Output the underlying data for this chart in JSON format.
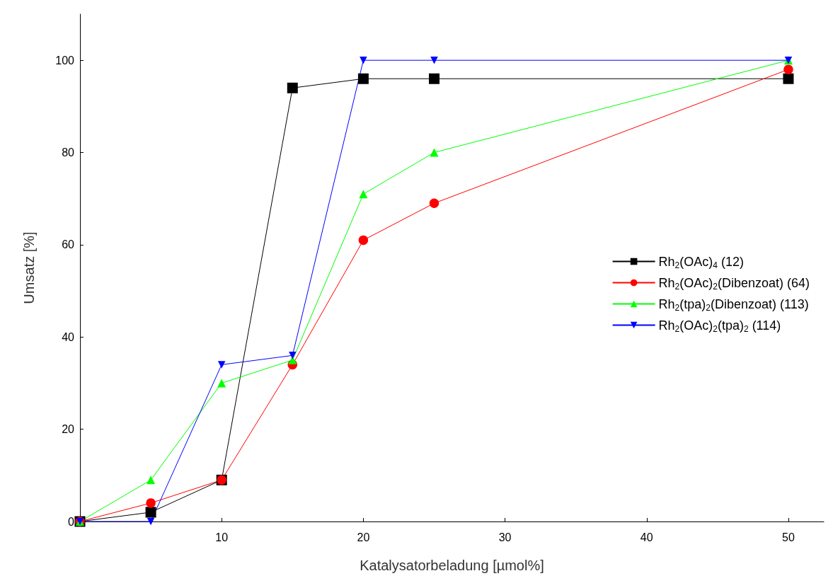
{
  "chart_data": {
    "type": "line",
    "xlabel": "Katalysatorbeladung [µmol%]",
    "ylabel": "Umsatz [%]",
    "x": [
      0,
      5,
      10,
      15,
      20,
      25,
      50
    ],
    "xlim": [
      0,
      52.5
    ],
    "xticks": [
      {
        "value": 0,
        "label": null
      },
      10,
      20,
      30,
      40,
      50
    ],
    "ylim": [
      0,
      110
    ],
    "yticks": [
      0,
      20,
      40,
      60,
      80,
      100
    ],
    "grid": false,
    "legend": "right",
    "line_style": "solid",
    "series": [
      {
        "name": "Rh$_{2}$(OAc)$_{4}$ (12)",
        "color": "#000000",
        "marker": "square",
        "values": [
          0,
          2,
          9,
          94,
          96,
          96,
          96
        ]
      },
      {
        "name": "Rh$_{2}$(OAc)$_{2}$(Dibenzoat) (64)",
        "color": "#ff0000",
        "marker": "circle",
        "values": [
          0,
          4,
          9,
          34,
          61,
          69,
          98
        ]
      },
      {
        "name": "Rh$_{2}$(tpa)$_{2}$(Dibenzoat) (113)",
        "color": "#00ff00",
        "marker": "triangle",
        "values": [
          0,
          9,
          30,
          35,
          71,
          80,
          100
        ]
      },
      {
        "name": "Rh$_{2}$(OAc)$_{2}$(tpa)$_{2}$ (114)",
        "color": "#0000ff",
        "marker": "triangle-down",
        "values": [
          0,
          0,
          34,
          36,
          100,
          100,
          100
        ]
      }
    ]
  }
}
